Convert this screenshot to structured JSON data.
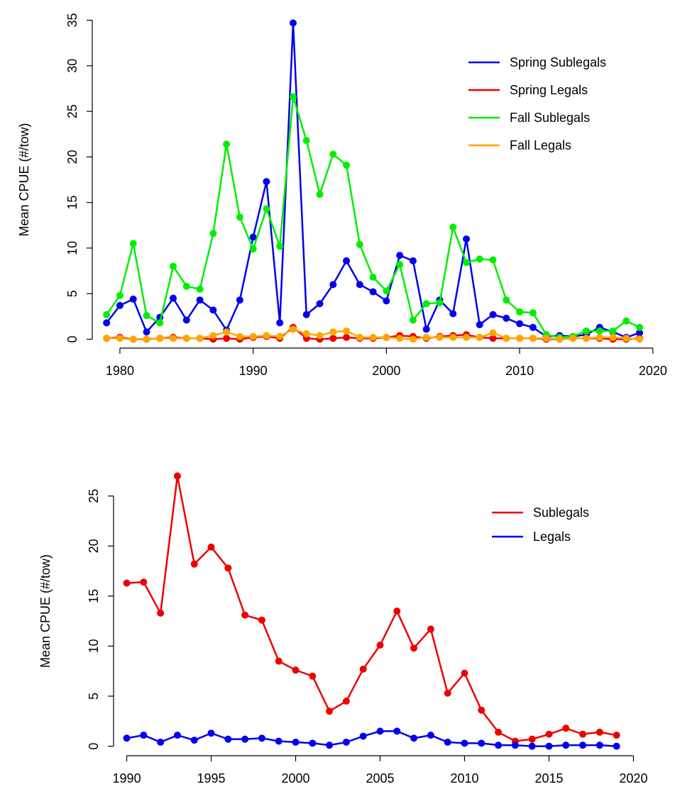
{
  "chart_data": [
    {
      "type": "line",
      "ylabel": "Mean CPUE (#/tow)",
      "x": [
        1979,
        1980,
        1981,
        1982,
        1983,
        1984,
        1985,
        1986,
        1987,
        1988,
        1989,
        1990,
        1991,
        1992,
        1993,
        1994,
        1995,
        1996,
        1997,
        1998,
        1999,
        2000,
        2001,
        2002,
        2003,
        2004,
        2005,
        2006,
        2007,
        2008,
        2009,
        2010,
        2011,
        2012,
        2013,
        2014,
        2015,
        2016,
        2017,
        2018,
        2019
      ],
      "series": [
        {
          "name": "Spring Sublegals",
          "color": "#0000ee",
          "values": [
            1.8,
            3.7,
            4.4,
            0.8,
            2.4,
            4.5,
            2.1,
            4.3,
            3.2,
            1.0,
            4.3,
            11.2,
            17.3,
            1.8,
            34.7,
            2.7,
            3.9,
            6.0,
            8.6,
            6.0,
            5.2,
            4.2,
            9.2,
            8.6,
            1.1,
            4.3,
            2.8,
            11.0,
            1.6,
            2.7,
            2.3,
            1.7,
            1.3,
            0.3,
            0.4,
            0.3,
            0.5,
            1.3,
            0.8,
            0.2,
            0.7
          ]
        },
        {
          "name": "Spring Legals",
          "color": "#ee0000",
          "values": [
            0.1,
            0.2,
            0.0,
            0.0,
            0.1,
            0.2,
            0.1,
            0.1,
            0.0,
            0.1,
            0.0,
            0.2,
            0.3,
            0.1,
            1.3,
            0.1,
            0.0,
            0.1,
            0.2,
            0.1,
            0.1,
            0.2,
            0.4,
            0.3,
            0.1,
            0.3,
            0.4,
            0.5,
            0.2,
            0.1,
            0.1,
            0.1,
            0.1,
            0.0,
            0.0,
            0.1,
            0.1,
            0.1,
            0.0,
            0.0,
            0.1
          ]
        },
        {
          "name": "Fall Sublegals",
          "color": "#00ee00",
          "values": [
            2.7,
            4.8,
            10.5,
            2.6,
            1.8,
            8.0,
            5.8,
            5.5,
            11.6,
            21.4,
            13.4,
            9.9,
            14.3,
            10.2,
            26.6,
            21.8,
            15.9,
            20.3,
            19.1,
            10.4,
            6.8,
            5.3,
            8.2,
            2.1,
            3.9,
            4.0,
            12.3,
            8.4,
            8.8,
            8.7,
            4.3,
            3.0,
            2.9,
            0.5,
            0.2,
            0.3,
            0.9,
            0.9,
            0.9,
            2.0,
            1.3
          ]
        },
        {
          "name": "Fall Legals",
          "color": "#ffa500",
          "values": [
            0.1,
            0.1,
            0.0,
            0.0,
            0.1,
            0.1,
            0.1,
            0.1,
            0.4,
            0.8,
            0.3,
            0.3,
            0.4,
            0.3,
            1.1,
            0.6,
            0.4,
            0.8,
            0.9,
            0.2,
            0.2,
            0.2,
            0.1,
            0.0,
            0.2,
            0.2,
            0.2,
            0.2,
            0.2,
            0.7,
            0.1,
            0.1,
            0.1,
            0.1,
            0.0,
            0.1,
            0.1,
            0.2,
            0.2,
            0.1,
            0.0
          ]
        }
      ],
      "xlim": [
        1977.5,
        2021.5
      ],
      "ylim": [
        -1.05,
        36.05
      ],
      "xticks": [
        1980,
        1990,
        2000,
        2010,
        2020
      ],
      "yticks": [
        0,
        5,
        10,
        15,
        20,
        25,
        30,
        35
      ],
      "legend": "top-right"
    },
    {
      "type": "line",
      "ylabel": "Mean CPUE (#/tow)",
      "x": [
        1990,
        1991,
        1992,
        1993,
        1994,
        1995,
        1996,
        1997,
        1998,
        1999,
        2000,
        2001,
        2002,
        2003,
        2004,
        2005,
        2006,
        2007,
        2008,
        2009,
        2010,
        2011,
        2012,
        2013,
        2014,
        2015,
        2016,
        2017,
        2018,
        2019
      ],
      "series": [
        {
          "name": "Sublegals",
          "color": "#ee0000",
          "values": [
            16.3,
            16.4,
            13.3,
            27.0,
            18.2,
            19.9,
            17.8,
            13.1,
            12.6,
            8.5,
            7.6,
            7.0,
            3.5,
            4.5,
            7.7,
            10.1,
            13.5,
            9.8,
            11.7,
            5.3,
            7.3,
            3.6,
            1.4,
            0.5,
            0.7,
            1.2,
            1.8,
            1.2,
            1.4,
            1.1
          ]
        },
        {
          "name": "Legals",
          "color": "#0000ee",
          "values": [
            0.8,
            1.1,
            0.4,
            1.1,
            0.6,
            1.3,
            0.7,
            0.7,
            0.8,
            0.5,
            0.4,
            0.3,
            0.1,
            0.4,
            1.0,
            1.5,
            1.5,
            0.8,
            1.1,
            0.4,
            0.3,
            0.3,
            0.1,
            0.1,
            0.0,
            0.0,
            0.1,
            0.1,
            0.1,
            0.0
          ]
        }
      ],
      "xlim": [
        1988.8,
        2021.2
      ],
      "ylim": [
        -0.81,
        27.81
      ],
      "xticks": [
        1990,
        1995,
        2000,
        2005,
        2010,
        2015,
        2020
      ],
      "yticks": [
        0,
        5,
        10,
        15,
        20,
        25
      ],
      "legend": "top-right"
    }
  ]
}
